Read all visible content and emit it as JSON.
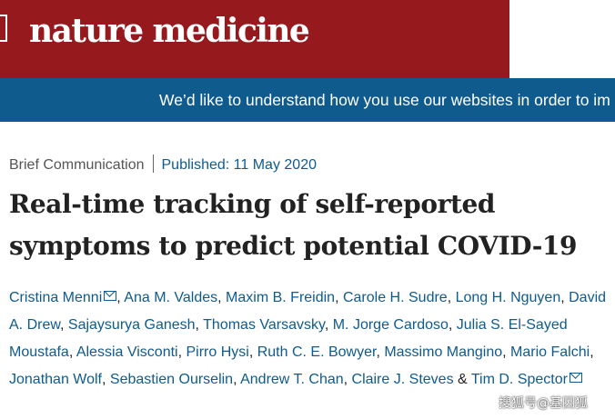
{
  "journal": {
    "logo_text": "nature medicine"
  },
  "cookie_banner": {
    "text": "We’d like to understand how you use our websites in order to im"
  },
  "article": {
    "type": "Brief Communication",
    "published": "Published: 11 May 2020",
    "title": "Real-time tracking of self-reported symptoms to predict potential COVID-19"
  },
  "authors": [
    "Cristina Menni",
    "Ana M. Valdes",
    "Maxim B. Freidin",
    "Carole H. Sudre",
    "Long H. Nguyen",
    "David A. Drew",
    "Sajaysurya Ganesh",
    "Thomas Varsavsky",
    "M. Jorge Cardoso",
    "Julia S. El-Sayed Moustafa",
    "Alessia Visconti",
    "Pirro Hysi",
    "Ruth C. E. Bowyer",
    "Massimo Mangino",
    "Mario Falchi",
    "Jonathan Wolf",
    "Sebastien Ourselin",
    "Andrew T. Chan",
    "Claire J. Steves",
    "Tim D. Spector"
  ],
  "separators": {
    "comma": ", ",
    "and": " & "
  },
  "watermark": "搜狐号@基因狐",
  "colors": {
    "brand_red": "#961a1d",
    "banner_blue": "#0f5b8e",
    "link_blue": "#0f5b8e"
  },
  "icons": {
    "corresponding_author": "mail-icon"
  }
}
